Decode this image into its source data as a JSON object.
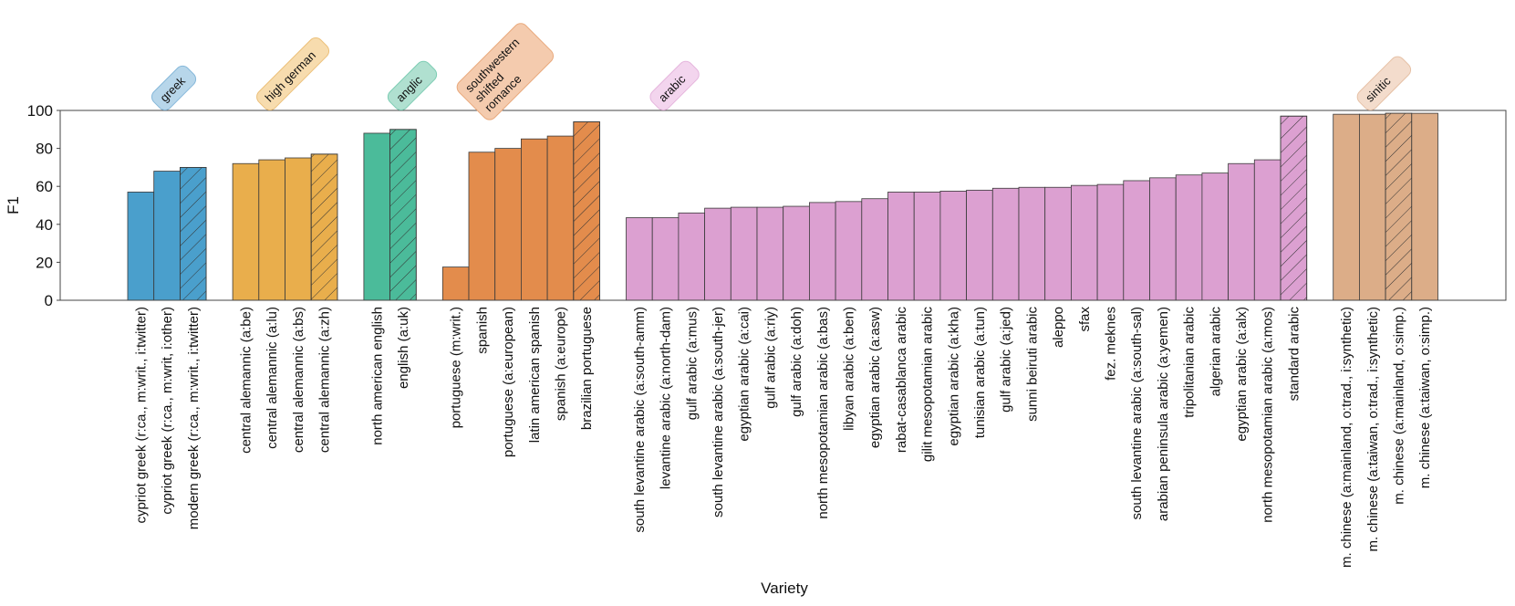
{
  "chart_data": {
    "type": "bar",
    "xlabel": "Variety",
    "ylabel": "F1",
    "ylim": [
      0,
      100
    ],
    "yticks": [
      0,
      20,
      40,
      60,
      80,
      100
    ],
    "grid": false,
    "groups": [
      {
        "name": "greek",
        "color": "#4a9fcc",
        "label_color": "#b7d6ea",
        "label_border": "#86b8da",
        "items": [
          {
            "label": "cypriot greek (r:ca., m:writ., i:twitter)",
            "value": 57,
            "hatch": false
          },
          {
            "label": "cypriot greek (r:ca., m:writ, i:other)",
            "value": 68,
            "hatch": false
          },
          {
            "label": "modern greek (r:ca., m:writ., i:twitter)",
            "value": 70,
            "hatch": true
          }
        ]
      },
      {
        "name": "high german",
        "color": "#e9ae4c",
        "label_color": "#f7dcae",
        "label_border": "#ecc07a",
        "items": [
          {
            "label": "central alemannic (a:be)",
            "value": 72,
            "hatch": false
          },
          {
            "label": "central alemannic (a:lu)",
            "value": 74,
            "hatch": false
          },
          {
            "label": "central alemannic (a:bs)",
            "value": 75,
            "hatch": false
          },
          {
            "label": "central alemannic (a:zh)",
            "value": 77,
            "hatch": true
          }
        ]
      },
      {
        "name": "anglic",
        "color": "#4bbb9a",
        "label_color": "#b0e0d0",
        "label_border": "#7dcdb4",
        "items": [
          {
            "label": "north american english",
            "value": 88,
            "hatch": false
          },
          {
            "label": "english (a:uk)",
            "value": 90,
            "hatch": true
          }
        ]
      },
      {
        "name": "southwestern shifted romance",
        "name_lines": [
          "southwestern",
          "shifted",
          "romance"
        ],
        "color": "#e38c4c",
        "label_color": "#f4cbae",
        "label_border": "#e9a97c",
        "items": [
          {
            "label": "portuguese (m:writ.)",
            "value": 17.5,
            "hatch": false
          },
          {
            "label": "spanish",
            "value": 78,
            "hatch": false
          },
          {
            "label": "portuguese (a:european)",
            "value": 80,
            "hatch": false
          },
          {
            "label": "latin american spanish",
            "value": 85,
            "hatch": false
          },
          {
            "label": "spanish (a:europe)",
            "value": 86.5,
            "hatch": false
          },
          {
            "label": "brazilian portuguese",
            "value": 94,
            "hatch": true
          }
        ]
      },
      {
        "name": "arabic",
        "color": "#dca0d1",
        "label_color": "#f3d5ee",
        "label_border": "#e5b5dd",
        "items": [
          {
            "label": "south levantine arabic (a:south-amm)",
            "value": 43.5,
            "hatch": false
          },
          {
            "label": "levantine arabic (a:north-dam)",
            "value": 43.5,
            "hatch": false
          },
          {
            "label": "gulf arabic (a:mus)",
            "value": 46,
            "hatch": false
          },
          {
            "label": "south levantine arabic (a:south-jer)",
            "value": 48.5,
            "hatch": false
          },
          {
            "label": "egyptian arabic (a:cai)",
            "value": 49,
            "hatch": false
          },
          {
            "label": "gulf arabic (a:riy)",
            "value": 49,
            "hatch": false
          },
          {
            "label": "gulf arabic (a:doh)",
            "value": 49.5,
            "hatch": false
          },
          {
            "label": "north mesopotamian arabic (a:bas)",
            "value": 51.5,
            "hatch": false
          },
          {
            "label": "libyan arabic (a:ben)",
            "value": 52,
            "hatch": false
          },
          {
            "label": "egyptian arabic (a:asw)",
            "value": 53.5,
            "hatch": false
          },
          {
            "label": "rabat-casablanca arabic",
            "value": 57,
            "hatch": false
          },
          {
            "label": "gilit mesopotamian arabic",
            "value": 57,
            "hatch": false
          },
          {
            "label": "egyptian arabic (a:kha)",
            "value": 57.5,
            "hatch": false
          },
          {
            "label": "tunisian arabic (a:tun)",
            "value": 58,
            "hatch": false
          },
          {
            "label": "gulf arabic (a:jed)",
            "value": 59,
            "hatch": false
          },
          {
            "label": "sunni beiruti arabic",
            "value": 59.5,
            "hatch": false
          },
          {
            "label": "aleppo",
            "value": 59.5,
            "hatch": false
          },
          {
            "label": "sfax",
            "value": 60.5,
            "hatch": false
          },
          {
            "label": "fez. meknes",
            "value": 61,
            "hatch": false
          },
          {
            "label": "south levantine arabic (a:south-sal)",
            "value": 63,
            "hatch": false
          },
          {
            "label": "arabian peninsula arabic (a:yemen)",
            "value": 64.5,
            "hatch": false
          },
          {
            "label": "tripolitanian arabic",
            "value": 66,
            "hatch": false
          },
          {
            "label": "algerian arabic",
            "value": 67,
            "hatch": false
          },
          {
            "label": "egyptian arabic (a:alx)",
            "value": 72,
            "hatch": false
          },
          {
            "label": "north mesopotamian arabic (a:mos)",
            "value": 74,
            "hatch": false
          },
          {
            "label": "standard arabic",
            "value": 97,
            "hatch": true
          }
        ]
      },
      {
        "name": "sinitic",
        "color": "#dcad88",
        "label_color": "#f3dccc",
        "label_border": "#e6c1a6",
        "items": [
          {
            "label": "m. chinese (a:mainland, o:trad., i:synthetic)",
            "value": 98,
            "hatch": false
          },
          {
            "label": "m. chinese (a:taiwan, o:trad., i:synthetic)",
            "value": 98,
            "hatch": false
          },
          {
            "label": "m. chinese (a:mainland, o:simp.)",
            "value": 98.5,
            "hatch": true
          },
          {
            "label": "m. chinese (a:taiwan, o:simp.)",
            "value": 98.5,
            "hatch": false
          }
        ]
      }
    ]
  }
}
